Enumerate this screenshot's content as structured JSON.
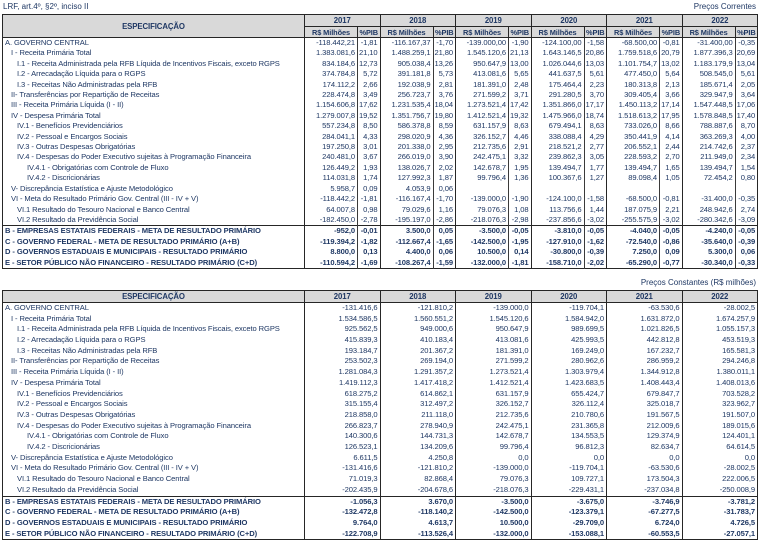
{
  "meta": {
    "note": "LRF, art.4º, §2º, inciso II",
    "caption_current": "Preços Correntes",
    "caption_constant": "Preços Constantes (R$ milhões)"
  },
  "headers": {
    "specification": "ESPECIFICAÇÃO",
    "years": [
      "2017",
      "2018",
      "2019",
      "2020",
      "2021",
      "2022"
    ],
    "unit_value": "R$ Milhões",
    "unit_pib": "%PIB"
  },
  "rows": [
    {
      "label": "A. GOVERNO CENTRAL",
      "indent": 0,
      "bold": false,
      "current": [
        "-118.442,21",
        "-1,81",
        "-116.167,37",
        "-1,70",
        "-139.000,00",
        "-1,90",
        "-124.100,00",
        "-1,58",
        "-68.500,00",
        "-0,81",
        "-31.400,00",
        "-0,35"
      ],
      "constant": [
        "-131.416,6",
        "-121.810,2",
        "-139.000,0",
        "-119.704,1",
        "-63.530,6",
        "-28.002,5"
      ]
    },
    {
      "label": "I - Receita Primária Total",
      "indent": 1,
      "bold": false,
      "current": [
        "1.383.081,6",
        "21,10",
        "1.488.259,1",
        "21,80",
        "1.545.120,6",
        "21,13",
        "1.643.146,5",
        "20,86",
        "1.759.518,6",
        "20,79",
        "1.877.396,3",
        "20,69"
      ],
      "constant": [
        "1.534.586,5",
        "1.560.551,2",
        "1.545.120,6",
        "1.584.942,0",
        "1.631.872,0",
        "1.674.257,9"
      ]
    },
    {
      "label": "I.1 - Receita Administrada pela RFB Líquida de Incentivos Fiscais, exceto RGPS",
      "indent": 2,
      "bold": false,
      "current": [
        "834.184,6",
        "12,73",
        "905.038,4",
        "13,26",
        "950.647,9",
        "13,00",
        "1.026.044,6",
        "13,03",
        "1.101.754,7",
        "13,02",
        "1.183.179,9",
        "13,04"
      ],
      "constant": [
        "925.562,5",
        "949.000,6",
        "950.647,9",
        "989.699,5",
        "1.021.826,5",
        "1.055.157,3"
      ]
    },
    {
      "label": "I.2 - Arrecadação Líquida para o RGPS",
      "indent": 2,
      "bold": false,
      "current": [
        "374.784,8",
        "5,72",
        "391.181,8",
        "5,73",
        "413.081,6",
        "5,65",
        "441.637,5",
        "5,61",
        "477.450,0",
        "5,64",
        "508.545,0",
        "5,61"
      ],
      "constant": [
        "415.839,3",
        "410.183,4",
        "413.081,6",
        "425.993,5",
        "442.812,8",
        "453.519,3"
      ]
    },
    {
      "label": "I.3 - Receitas Não Administradas pela RFB",
      "indent": 2,
      "bold": false,
      "current": [
        "174.112,2",
        "2,66",
        "192.038,9",
        "2,81",
        "181.391,0",
        "2,48",
        "175.464,4",
        "2,23",
        "180.313,8",
        "2,13",
        "185.671,4",
        "2,05"
      ],
      "constant": [
        "193.184,7",
        "201.367,2",
        "181.391,0",
        "169.249,0",
        "167.232,7",
        "165.581,3"
      ]
    },
    {
      "label": "II- Transferências por Repartição de Receitas",
      "indent": 1,
      "bold": false,
      "current": [
        "228.474,8",
        "3,49",
        "256.723,7",
        "3,76",
        "271.599,2",
        "3,71",
        "291.280,5",
        "3,70",
        "309.405,4",
        "3,66",
        "329.947,9",
        "3,64"
      ],
      "constant": [
        "253.502,3",
        "269.194,0",
        "271.599,2",
        "280.962,6",
        "286.959,2",
        "294.246,8"
      ]
    },
    {
      "label": "III - Receita Primária Líquida (I - II)",
      "indent": 1,
      "bold": false,
      "current": [
        "1.154.606,8",
        "17,62",
        "1.231.535,4",
        "18,04",
        "1.273.521,4",
        "17,42",
        "1.351.866,0",
        "17,17",
        "1.450.113,2",
        "17,14",
        "1.547.448,5",
        "17,06"
      ],
      "constant": [
        "1.281.084,3",
        "1.291.357,2",
        "1.273.521,4",
        "1.303.979,4",
        "1.344.912,8",
        "1.380.011,1"
      ]
    },
    {
      "label": "IV - Despesa Primária Total",
      "indent": 1,
      "bold": false,
      "current": [
        "1.279.007,8",
        "19,52",
        "1.351.756,7",
        "19,80",
        "1.412.521,4",
        "19,32",
        "1.475.966,0",
        "18,74",
        "1.518.613,2",
        "17,95",
        "1.578.848,5",
        "17,40"
      ],
      "constant": [
        "1.419.112,3",
        "1.417.418,2",
        "1.412.521,4",
        "1.423.683,5",
        "1.408.443,4",
        "1.408.013,6"
      ]
    },
    {
      "label": "IV.1 - Benefícios Previdenciários",
      "indent": 2,
      "bold": false,
      "current": [
        "557.234,8",
        "8,50",
        "586.378,8",
        "8,59",
        "631.157,9",
        "8,63",
        "679.494,1",
        "8,63",
        "733.026,0",
        "8,66",
        "788.887,6",
        "8,70"
      ],
      "constant": [
        "618.275,2",
        "614.862,1",
        "631.157,9",
        "655.424,7",
        "679.847,7",
        "703.528,2"
      ]
    },
    {
      "label": "IV.2 - Pessoal e Encargos Sociais",
      "indent": 2,
      "bold": false,
      "current": [
        "284.041,1",
        "4,33",
        "298.020,9",
        "4,36",
        "326.152,7",
        "4,46",
        "338.088,4",
        "4,29",
        "350.441,9",
        "4,14",
        "363.269,3",
        "4,00"
      ],
      "constant": [
        "315.155,4",
        "312.497,2",
        "326.152,7",
        "326.112,4",
        "325.018,7",
        "323.962,7"
      ]
    },
    {
      "label": "IV.3 - Outras Despesas Obrigatórias",
      "indent": 2,
      "bold": false,
      "current": [
        "197.250,8",
        "3,01",
        "201.338,0",
        "2,95",
        "212.735,6",
        "2,91",
        "218.521,2",
        "2,77",
        "206.552,1",
        "2,44",
        "214.742,6",
        "2,37"
      ],
      "constant": [
        "218.858,0",
        "211.118,0",
        "212.735,6",
        "210.780,6",
        "191.567,5",
        "191.507,0"
      ]
    },
    {
      "label": "IV.4 - Despesas do Poder Executivo sujeitas à Programação Financeira",
      "indent": 2,
      "bold": false,
      "current": [
        "240.481,0",
        "3,67",
        "266.019,0",
        "3,90",
        "242.475,1",
        "3,32",
        "239.862,3",
        "3,05",
        "228.593,2",
        "2,70",
        "211.949,0",
        "2,34"
      ],
      "constant": [
        "266.823,7",
        "278.940,9",
        "242.475,1",
        "231.365,8",
        "212.009,6",
        "189.015,6"
      ]
    },
    {
      "label": "IV.4.1 - Obrigatórias com Controle de Fluxo",
      "indent": 3,
      "bold": false,
      "current": [
        "126.449,2",
        "1,93",
        "138.026,7",
        "2,02",
        "142.678,7",
        "1,95",
        "139.494,7",
        "1,77",
        "139.494,7",
        "1,65",
        "139.494,7",
        "1,54"
      ],
      "constant": [
        "140.300,6",
        "144.731,3",
        "142.678,7",
        "134.553,5",
        "129.374,9",
        "124.401,1"
      ]
    },
    {
      "label": "IV.4.2 - Discricionárias",
      "indent": 3,
      "bold": false,
      "current": [
        "114.031,8",
        "1,74",
        "127.992,3",
        "1,87",
        "99.796,4",
        "1,36",
        "100.367,6",
        "1,27",
        "89.098,4",
        "1,05",
        "72.454,2",
        "0,80"
      ],
      "constant": [
        "126.523,1",
        "134.209,6",
        "99.796,4",
        "96.812,3",
        "82.634,7",
        "64.614,5"
      ]
    },
    {
      "label": "V- Discrepância Estatística e Ajuste Metodológico",
      "indent": 1,
      "bold": false,
      "current": [
        "5.958,7",
        "0,09",
        "4.053,9",
        "0,06",
        "",
        "",
        "",
        "",
        "",
        "",
        "",
        ""
      ],
      "constant": [
        "6.611,5",
        "4.250,8",
        "0,0",
        "0,0",
        "0,0",
        "0,0"
      ]
    },
    {
      "label": "VI - Meta do Resultado Primário Gov. Central (III - IV + V)",
      "indent": 1,
      "bold": false,
      "current": [
        "-118.442,2",
        "-1,81",
        "-116.167,4",
        "-1,70",
        "-139.000,0",
        "-1,90",
        "-124.100,0",
        "-1,58",
        "-68.500,0",
        "-0,81",
        "-31.400,0",
        "-0,35"
      ],
      "constant": [
        "-131.416,6",
        "-121.810,2",
        "-139.000,0",
        "-119.704,1",
        "-63.530,6",
        "-28.002,5"
      ]
    },
    {
      "label": "VI.1 Resultado do Tesouro Nacional e Banco Central",
      "indent": 2,
      "bold": false,
      "current": [
        "64.007,8",
        "0,98",
        "79.029,6",
        "1,16",
        "79.076,3",
        "1,08",
        "113.756,6",
        "1,44",
        "187.075,9",
        "2,21",
        "248.942,6",
        "2,74"
      ],
      "constant": [
        "71.019,3",
        "82.868,4",
        "79.076,3",
        "109.727,1",
        "173.504,3",
        "222.006,5"
      ]
    },
    {
      "label": "VI.2 Resultado da Previdência Social",
      "indent": 2,
      "bold": false,
      "current": [
        "-182.450,0",
        "-2,78",
        "-195.197,0",
        "-2,86",
        "-218.076,3",
        "-2,98",
        "-237.856,6",
        "-3,02",
        "-255.575,9",
        "-3,02",
        "-280.342,6",
        "-3,09"
      ],
      "constant": [
        "-202.435,9",
        "-204.678,6",
        "-218.076,3",
        "-229.431,1",
        "-237.034,8",
        "-250.008,9"
      ]
    },
    {
      "label": "B - EMPRESAS ESTATAIS FEDERAIS - META DE RESULTADO PRIMÁRIO",
      "indent": 0,
      "bold": true,
      "current": [
        "-952,0",
        "-0,01",
        "3.500,0",
        "0,05",
        "-3.500,0",
        "-0,05",
        "-3.810,0",
        "-0,05",
        "-4.040,0",
        "-0,05",
        "-4.240,0",
        "-0,05"
      ],
      "constant": [
        "-1.056,3",
        "3.670,0",
        "-3.500,0",
        "-3.675,0",
        "-3.746,9",
        "-3.781,2"
      ]
    },
    {
      "label": "C - GOVERNO FEDERAL - META DE RESULTADO PRIMÁRIO (A+B)",
      "indent": 0,
      "bold": true,
      "current": [
        "-119.394,2",
        "-1,82",
        "-112.667,4",
        "-1,65",
        "-142.500,0",
        "-1,95",
        "-127.910,0",
        "-1,62",
        "-72.540,0",
        "-0,86",
        "-35.640,0",
        "-0,39"
      ],
      "constant": [
        "-132.472,8",
        "-118.140,2",
        "-142.500,0",
        "-123.379,1",
        "-67.277,5",
        "-31.783,7"
      ]
    },
    {
      "label": "D - GOVERNOS ESTADUAIS E MUNICIPAIS - RESULTADO PRIMÁRIO",
      "indent": 0,
      "bold": true,
      "current": [
        "8.800,0",
        "0,13",
        "4.400,0",
        "0,06",
        "10.500,0",
        "0,14",
        "-30.800,0",
        "-0,39",
        "7.250,0",
        "0,09",
        "5.300,0",
        "0,06"
      ],
      "constant": [
        "9.764,0",
        "4.613,7",
        "10.500,0",
        "-29.709,0",
        "6.724,0",
        "4.726,5"
      ]
    },
    {
      "label": "E - SETOR PÚBLICO NÃO FINANCEIRO - RESULTADO PRIMÁRIO (C+D)",
      "indent": 0,
      "bold": true,
      "current": [
        "-110.594,2",
        "-1,69",
        "-108.267,4",
        "-1,59",
        "-132.000,0",
        "-1,81",
        "-158.710,0",
        "-2,02",
        "-65.290,0",
        "-0,77",
        "-30.340,0",
        "-0,33"
      ],
      "constant": [
        "-122.708,9",
        "-113.526,4",
        "-132.000,0",
        "-153.088,1",
        "-60.553,5",
        "-27.057,1"
      ]
    }
  ]
}
